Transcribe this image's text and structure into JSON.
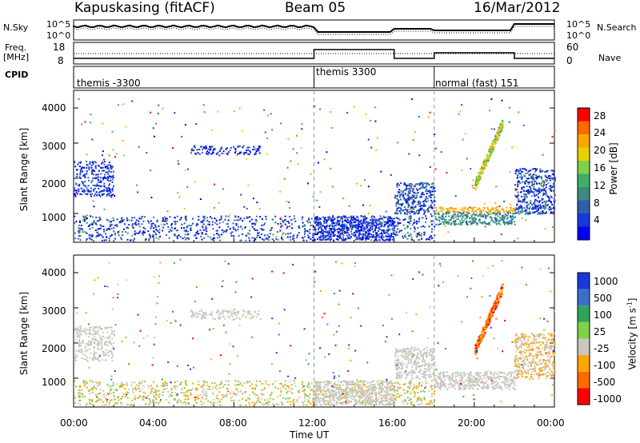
{
  "header": {
    "station": "Kapuskasing (fitACF)",
    "beam": "Beam 05",
    "date": "16/Mar/2012"
  },
  "sky_panel": {
    "left_label": "N.Sky",
    "right_label": "N.Search",
    "left_ticks": [
      "10^5",
      "10^0"
    ],
    "right_ticks": [
      "10^5",
      "10^0"
    ]
  },
  "freq_panel": {
    "left_label_1": "Freq.",
    "left_label_2": "[MHz]",
    "right_label": "Nave",
    "left_ticks": [
      "18",
      "8"
    ],
    "right_ticks": [
      "60",
      "0"
    ]
  },
  "cpid_panel": {
    "label": "CPID",
    "segments": [
      "themis -3300",
      "themis 3300",
      "normal (fast) 151"
    ]
  },
  "chart_data": [
    {
      "type": "scatter",
      "title": "Power",
      "ylabel": "Slant Range [km]",
      "xlabel": "",
      "ylim": [
        180,
        4500
      ],
      "xlim": [
        0,
        24
      ],
      "y_ticks": [
        "1000",
        "2000",
        "3000",
        "4000"
      ],
      "colorbar": {
        "label": "Power [dB]",
        "ticks": [
          "28",
          "24",
          "20",
          "16",
          "12",
          "8",
          "4"
        ],
        "colors": [
          "#ff0000",
          "#ff6a00",
          "#ffa500",
          "#e6d200",
          "#7fd04a",
          "#3fae6a",
          "#3d8a80",
          "#2e5fa8",
          "#1a37d8",
          "#0000ff"
        ]
      }
    },
    {
      "type": "scatter",
      "title": "Velocity",
      "ylabel": "Slant Range [km]",
      "xlabel": "Time UT",
      "ylim": [
        180,
        4500
      ],
      "xlim": [
        0,
        24
      ],
      "y_ticks": [
        "1000",
        "2000",
        "3000",
        "4000"
      ],
      "x_ticks": [
        "00:00",
        "04:00",
        "08:00",
        "12:00",
        "16:00",
        "20:00",
        "00:00"
      ],
      "colorbar": {
        "label": "Velocity [m s",
        "label_sup": "-1",
        "label_end": "]",
        "ticks": [
          "1000",
          "500",
          "100",
          "25",
          "-25",
          "-100",
          "-500",
          "-1000"
        ],
        "colors": [
          "#1a37d8",
          "#3d6fc8",
          "#33a35a",
          "#7fd04a",
          "#c8c8c0",
          "#ffa500",
          "#ff6a00",
          "#ff0000"
        ]
      }
    }
  ]
}
